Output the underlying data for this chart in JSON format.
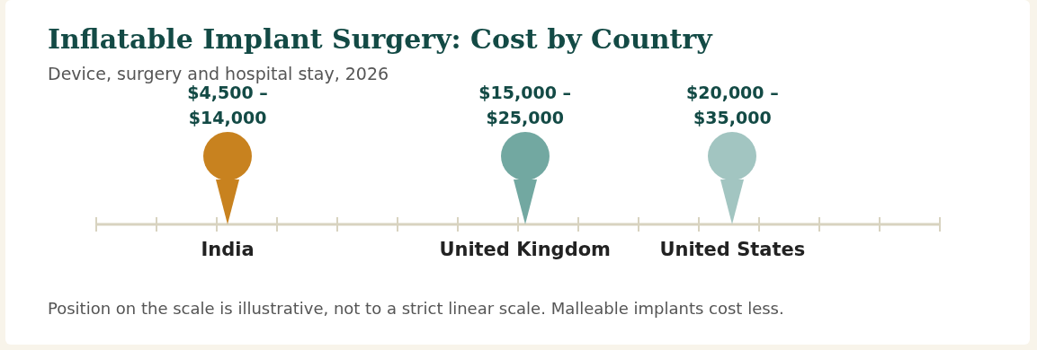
{
  "chart_data": {
    "type": "other",
    "title": "Inflatable Implant Surgery: Cost by Country",
    "subtitle": "Device, surgery and hospital stay, 2026",
    "categories": [
      "India",
      "United Kingdom",
      "United States"
    ],
    "series": [
      {
        "values": [
          4500,
          15000,
          20000
        ],
        "value_labels": [
          "$4,500 –",
          "$15,000 –",
          "$20,000 –"
        ]
      },
      {
        "values": [
          14000,
          25000,
          35000
        ],
        "value_labels": [
          "$14,000",
          "$25,000",
          "$35,000"
        ]
      }
    ],
    "colors": [
      "#c8821f",
      "#72a8a1",
      "#a2c5c1"
    ],
    "annotations": [
      "Position on the scale is illustrative, not to a strict linear scale. Malleable implants cost less."
    ]
  }
}
